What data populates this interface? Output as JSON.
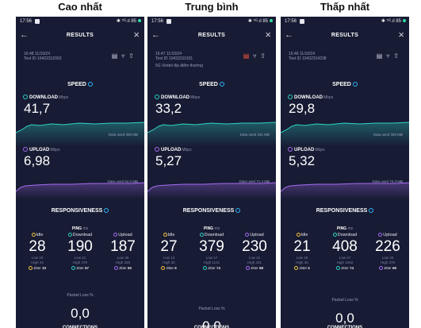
{
  "headers": [
    "Cao nhất",
    "Trung bình",
    "Thấp nhất"
  ],
  "app": {
    "results_title": "RESULTS",
    "speed_title": "SPEED",
    "download_label": "DOWNLOAD",
    "upload_label": "UPLOAD",
    "unit_speed": "Mbps",
    "responsiveness_title": "RESPONSIVENESS",
    "ping_label": "PING",
    "ping_unit": "ms",
    "idle_label": "Idle",
    "download_col": "Download",
    "upload_col": "Upload",
    "low_label": "Low",
    "high_label": "High",
    "jitter_label": "Jitter",
    "packet_loss_label": "Packet Loss",
    "packet_loss_unit": "%",
    "connections_title": "CONNECTIONS"
  },
  "colors": {
    "download": "#2fd3c1",
    "upload": "#a56cf0",
    "idle": "#f5c542",
    "background": "#171b33",
    "accent": "#2fb8ff"
  },
  "phones": [
    {
      "status_time": "17:56",
      "status_right": "✱ ⁵ᴳ.ıl 85",
      "meta_date": "16:48 11/10/24",
      "meta_test_id": "Test ID 10432312093",
      "provider": "",
      "download": "41,7",
      "download_used": "Data used 350 MB",
      "upload": "6,98",
      "upload_used": "Data used 62,0 MB",
      "idle": "28",
      "idle_low": "19",
      "idle_high": "44",
      "idle_jitter": "10",
      "dl_ping": "190",
      "dl_low": "21",
      "dl_high": "478",
      "dl_jitter": "57",
      "ul_ping": "187",
      "ul_low": "30",
      "ul_high": "328",
      "ul_jitter": "60",
      "packet_loss": "0,0"
    },
    {
      "status_time": "17:56",
      "status_right": "✱ ⁵ᴳ.ıl 85",
      "meta_date": "16:47 11/10/24",
      "meta_test_id": "Test ID 10432311931",
      "provider": "5G Viettel địa điểm thường",
      "download": "33,2",
      "download_used": "Data used 331 MB",
      "upload": "5,27",
      "upload_used": "Data used 71,4 MB",
      "idle": "27",
      "idle_low": "13",
      "idle_high": "32",
      "idle_jitter": "6",
      "dl_ping": "379",
      "dl_low": "17",
      "dl_high": "1141",
      "dl_jitter": "74",
      "ul_ping": "230",
      "ul_low": "21",
      "ul_high": "431",
      "ul_jitter": "68",
      "packet_loss": "0,0"
    },
    {
      "status_time": "17:56",
      "status_right": "✱ ⁵ᴳ.ıl 85",
      "meta_date": "16:46 11/10/24",
      "meta_test_id": "Test ID 10432314238",
      "provider": "",
      "download": "29,8",
      "download_used": "Data used 393 MB",
      "upload": "5,32",
      "upload_used": "Data used 70,3 MB",
      "idle": "21",
      "idle_low": "19",
      "idle_high": "36",
      "idle_jitter": "5",
      "dl_ping": "408",
      "dl_low": "27",
      "dl_high": "1062",
      "dl_jitter": "74",
      "ul_ping": "226",
      "ul_low": "33",
      "ul_high": "379",
      "ul_jitter": "66",
      "packet_loss": "0,0"
    }
  ]
}
